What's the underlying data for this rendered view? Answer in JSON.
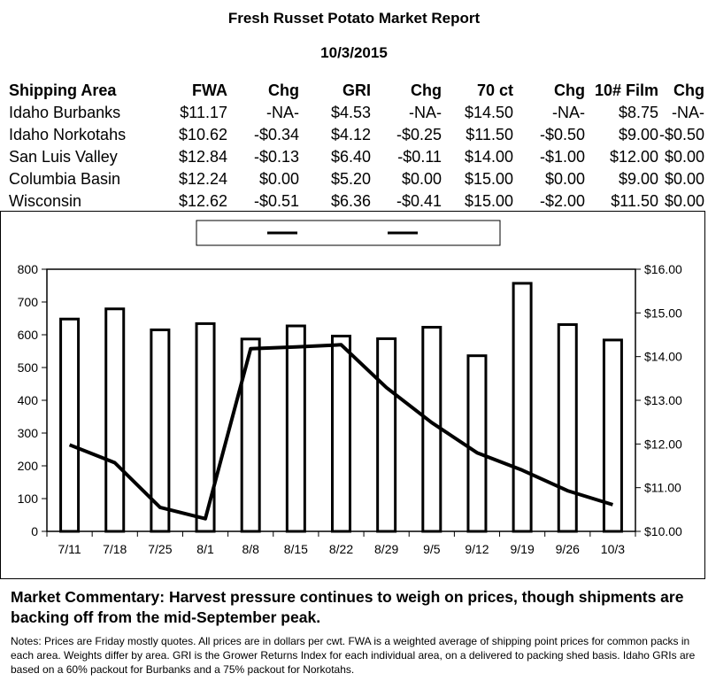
{
  "report": {
    "title": "Fresh Russet Potato Market Report",
    "date": "10/3/2015"
  },
  "table": {
    "headers": [
      "Shipping Area",
      "FWA",
      "Chg",
      "GRI",
      "Chg",
      "70 ct",
      "Chg",
      "10# Film",
      "Chg"
    ],
    "rows": [
      [
        "Idaho Burbanks",
        "$11.17",
        "-NA-",
        "$4.53",
        "-NA-",
        "$14.50",
        "-NA-",
        "$8.75",
        "-NA-"
      ],
      [
        "Idaho Norkotahs",
        "$10.62",
        "-$0.34",
        "$4.12",
        "-$0.25",
        "$11.50",
        "-$0.50",
        "$9.00",
        "-$0.50"
      ],
      [
        "San Luis Valley",
        "$12.84",
        "-$0.13",
        "$6.40",
        "-$0.11",
        "$14.00",
        "-$1.00",
        "$12.00",
        "$0.00"
      ],
      [
        "Columbia Basin",
        "$12.24",
        "$0.00",
        "$5.20",
        "$0.00",
        "$15.00",
        "$0.00",
        "$9.00",
        "$0.00"
      ],
      [
        "Wisconsin",
        "$12.62",
        "-$0.51",
        "$6.36",
        "-$0.41",
        "$15.00",
        "-$2.00",
        "$11.50",
        "$0.00"
      ]
    ]
  },
  "chart_data": {
    "type": "bar",
    "categories": [
      "7/11",
      "7/18",
      "7/25",
      "8/1",
      "8/8",
      "8/15",
      "8/22",
      "8/29",
      "9/5",
      "9/12",
      "9/19",
      "9/26",
      "10/3"
    ],
    "series": [
      {
        "type": "bar",
        "axis": "left",
        "values": [
          648,
          679,
          615,
          634,
          587,
          627,
          596,
          588,
          623,
          536,
          757,
          631,
          584
        ]
      },
      {
        "type": "line",
        "axis": "right",
        "values": [
          11.98,
          11.57,
          10.55,
          10.29,
          14.18,
          14.22,
          14.27,
          13.29,
          12.49,
          11.8,
          11.4,
          10.93,
          10.61
        ]
      }
    ],
    "y_left": {
      "min": 0,
      "max": 800,
      "ticks": [
        "0",
        "100",
        "200",
        "300",
        "400",
        "500",
        "600",
        "700",
        "800"
      ]
    },
    "y_right": {
      "min": 10,
      "max": 16,
      "ticks": [
        "$10.00",
        "$11.00",
        "$12.00",
        "$13.00",
        "$14.00",
        "$15.00",
        "$16.00"
      ]
    },
    "legend": {
      "placement": "top-center"
    },
    "colors": {
      "bar_fill": "#ffffff",
      "stroke": "#000000"
    },
    "grid": false
  },
  "commentary": "Market Commentary: Harvest pressure continues to weigh on prices, though shipments are backing off from the mid-September peak.",
  "notes": "Notes: Prices are Friday mostly quotes. All prices are in dollars per cwt. FWA is a weighted average of shipping point prices for  common packs in each area. Weights differ by area. GRI is the Grower Returns Index for each individual area, on a delivered to packing shed basis. Idaho GRIs are based on a 60% packout for Burbanks and a 75% packout for Norkotahs."
}
